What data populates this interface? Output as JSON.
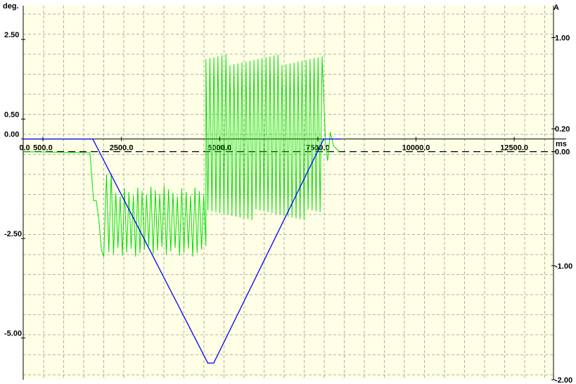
{
  "chart_data": {
    "type": "line",
    "x_axis": {
      "unit": "ms",
      "ticks": [
        "0.0",
        "500.0",
        "2500.0",
        "5000.0",
        "7500.0",
        "10000.0",
        "12500.0"
      ],
      "range": [
        0,
        13500
      ]
    },
    "y_left": {
      "unit": "deg.",
      "ticks": [
        "2.50",
        "0.50",
        "0.00",
        "-2.50",
        "-5.00"
      ],
      "range": [
        -6.05,
        3.35
      ]
    },
    "y_right": {
      "unit": "A",
      "ticks": [
        "1.00",
        "0.20",
        "0.00",
        "-1.00",
        "-2.00"
      ],
      "range": [
        -2.0,
        1.28
      ]
    },
    "grid": true,
    "series": [
      {
        "axis": "left",
        "color": "#0000ff",
        "x": [
          0,
          1770,
          4700,
          4850,
          7650,
          8100
        ],
        "y": [
          0.0,
          0.0,
          -5.63,
          -5.63,
          0.0,
          0.0
        ]
      },
      {
        "axis": "right",
        "color": "#00e000",
        "x": [
          0,
          1700,
          1790,
          1860,
          1930,
          1990,
          2050,
          2120,
          2180,
          2240,
          2300
        ],
        "y": [
          0.0,
          -0.01,
          -0.43,
          -0.43,
          -0.61,
          -0.86,
          -0.92,
          -0.2,
          -0.88,
          -0.19,
          -0.9
        ]
      }
    ]
  }
}
